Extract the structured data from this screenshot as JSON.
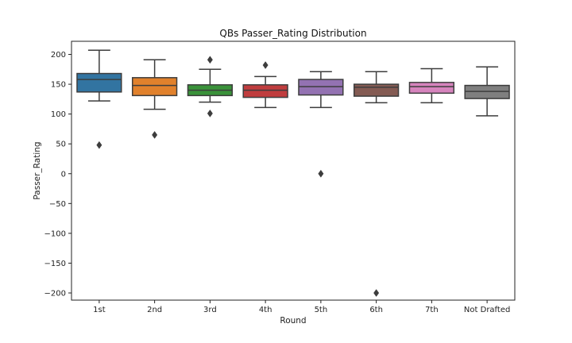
{
  "chart_data": {
    "type": "box",
    "title": "QBs Passer_Rating Distribution",
    "xlabel": "Round",
    "ylabel": "Passer_Rating",
    "ylim": [
      -212,
      222
    ],
    "yticks": [
      -200,
      -150,
      -100,
      -50,
      0,
      50,
      100,
      150,
      200
    ],
    "ytick_labels": [
      "−200",
      "−150",
      "−100",
      "−50",
      "0",
      "50",
      "100",
      "150",
      "200"
    ],
    "grid": false,
    "categories": [
      "1st",
      "2nd",
      "3rd",
      "4th",
      "5th",
      "6th",
      "7th",
      "Not Drafted"
    ],
    "boxes": [
      {
        "label": "1st",
        "color": "#3274a1",
        "whisker_low": 122,
        "q1": 137,
        "median": 158,
        "q3": 168,
        "whisker_high": 207,
        "outliers": [
          48
        ]
      },
      {
        "label": "2nd",
        "color": "#e1812c",
        "whisker_low": 108,
        "q1": 131,
        "median": 148,
        "q3": 161,
        "whisker_high": 191,
        "outliers": [
          65
        ]
      },
      {
        "label": "3rd",
        "color": "#3a923a",
        "whisker_low": 120,
        "q1": 131,
        "median": 140,
        "q3": 149,
        "whisker_high": 175,
        "outliers": [
          191,
          101
        ]
      },
      {
        "label": "4th",
        "color": "#c03d3e",
        "whisker_low": 111,
        "q1": 128,
        "median": 140,
        "q3": 149,
        "whisker_high": 163,
        "outliers": [
          182
        ]
      },
      {
        "label": "5th",
        "color": "#9372b2",
        "whisker_low": 111,
        "q1": 132,
        "median": 146,
        "q3": 158,
        "whisker_high": 171,
        "outliers": [
          0
        ]
      },
      {
        "label": "6th",
        "color": "#845b53",
        "whisker_low": 119,
        "q1": 130,
        "median": 145,
        "q3": 150,
        "whisker_high": 171,
        "outliers": [
          -200
        ]
      },
      {
        "label": "7th",
        "color": "#d684bd",
        "whisker_low": 119,
        "q1": 135,
        "median": 146,
        "q3": 153,
        "whisker_high": 176,
        "outliers": []
      },
      {
        "label": "Not Drafted",
        "color": "#7f7f7f",
        "whisker_low": 97,
        "q1": 126,
        "median": 138,
        "q3": 148,
        "whisker_high": 179,
        "outliers": []
      }
    ]
  }
}
